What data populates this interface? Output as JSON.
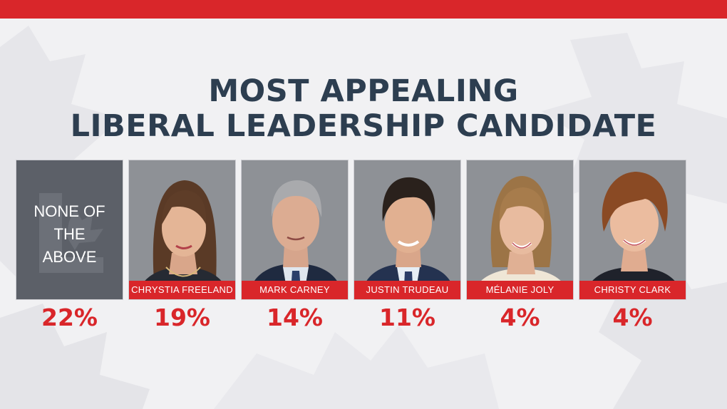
{
  "colors": {
    "accent_red": "#d9262a",
    "title_navy": "#2d3e50",
    "card_gray": "#5c6068",
    "photo_bg": "#8e9196",
    "page_bg": "#f1f1f3"
  },
  "chart_data": {
    "type": "bar",
    "title": "MOST APPEALING LIBERAL LEADERSHIP CANDIDATE",
    "title_lines": [
      "MOST APPEALING",
      "LIBERAL LEADERSHIP CANDIDATE"
    ],
    "categories": [
      "NONE OF THE ABOVE",
      "CHRYSTIA FREELAND",
      "MARK CARNEY",
      "JUSTIN TRUDEAU",
      "MÉLANIE JOLY",
      "CHRISTY CLARK"
    ],
    "none_lines": [
      "NONE OF",
      "THE",
      "ABOVE"
    ],
    "values": [
      22,
      19,
      14,
      11,
      4,
      4
    ],
    "value_labels": [
      "22%",
      "19%",
      "14%",
      "11%",
      "4%",
      "4%"
    ],
    "unit": "%"
  }
}
